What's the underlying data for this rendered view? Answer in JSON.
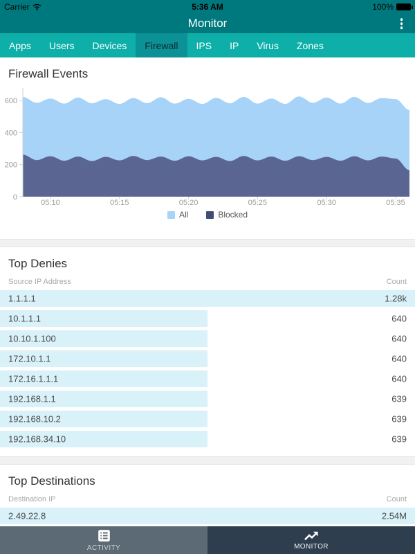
{
  "theme": {
    "bar_teal": "#00797e",
    "tab_teal": "#0eafa9",
    "tab_selected_teal": "#0c9196",
    "row_bar_cyan": "#d9f1f8",
    "bottom_left_bg": "#5b6a74",
    "bottom_right_bg": "#2e3e4f"
  },
  "status_bar": {
    "carrier": "Carrier",
    "time": "5:36 AM",
    "battery": "100%"
  },
  "nav": {
    "title": "Monitor"
  },
  "tabs": {
    "items": [
      "Apps",
      "Users",
      "Devices",
      "Firewall",
      "IPS",
      "IP",
      "Virus",
      "Zones"
    ],
    "selected_index": 3
  },
  "chart_section": {
    "title": "Firewall Events"
  },
  "chart_data": {
    "type": "area",
    "title": "Firewall Events",
    "x_minutes": [
      8,
      9,
      10,
      11,
      12,
      13,
      14,
      15,
      16,
      17,
      18,
      19,
      20,
      21,
      22,
      23,
      24,
      25,
      26,
      27,
      28,
      29,
      30,
      31,
      32,
      33,
      34,
      35,
      36
    ],
    "x_tick_minutes": [
      10,
      15,
      20,
      25,
      30,
      35
    ],
    "x_tick_labels": [
      "05:10",
      "05:15",
      "05:20",
      "05:25",
      "05:30",
      "05:35"
    ],
    "y_ticks": [
      0,
      200,
      400,
      600
    ],
    "ylim": [
      0,
      650
    ],
    "grid": false,
    "legend_position": "bottom",
    "series": [
      {
        "name": "All",
        "color": "#a6d3f7",
        "values": [
          622,
          585,
          612,
          580,
          618,
          582,
          608,
          578,
          615,
          583,
          620,
          580,
          610,
          578,
          616,
          582,
          622,
          580,
          612,
          578,
          625,
          585,
          618,
          580,
          622,
          584,
          615,
          608,
          540
        ]
      },
      {
        "name": "Blocked",
        "color": "#5a6591",
        "values": [
          262,
          228,
          252,
          224,
          250,
          222,
          248,
          226,
          254,
          228,
          250,
          224,
          252,
          226,
          248,
          222,
          254,
          226,
          250,
          224,
          252,
          228,
          248,
          224,
          252,
          226,
          250,
          238,
          165
        ]
      }
    ],
    "legend": [
      {
        "label": "All",
        "color": "#a6d3f7"
      },
      {
        "label": "Blocked",
        "color": "#3f4c73"
      }
    ]
  },
  "top_denies": {
    "title": "Top Denies",
    "col_left": "Source IP Address",
    "col_right": "Count",
    "max_value": 1280,
    "rows": [
      {
        "ip": "1.1.1.1",
        "count": "1.28k",
        "value": 1280
      },
      {
        "ip": "10.1.1.1",
        "count": "640",
        "value": 640
      },
      {
        "ip": "10.10.1.100",
        "count": "640",
        "value": 640
      },
      {
        "ip": "172.10.1.1",
        "count": "640",
        "value": 640
      },
      {
        "ip": "172.16.1.1.1",
        "count": "640",
        "value": 640
      },
      {
        "ip": "192.168.1.1",
        "count": "639",
        "value": 639
      },
      {
        "ip": "192.168.10.2",
        "count": "639",
        "value": 639
      },
      {
        "ip": "192.168.34.10",
        "count": "639",
        "value": 639
      }
    ]
  },
  "top_destinations": {
    "title": "Top Destinations",
    "col_left": "Destination IP",
    "col_right": "Count",
    "max_value": 2540000,
    "rows": [
      {
        "ip": "2.49.22.8",
        "count": "2.54M",
        "value": 2540000
      }
    ]
  },
  "bottom_nav": {
    "items": [
      {
        "label": "ACTIVITY",
        "selected": false
      },
      {
        "label": "MONITOR",
        "selected": true
      }
    ]
  }
}
